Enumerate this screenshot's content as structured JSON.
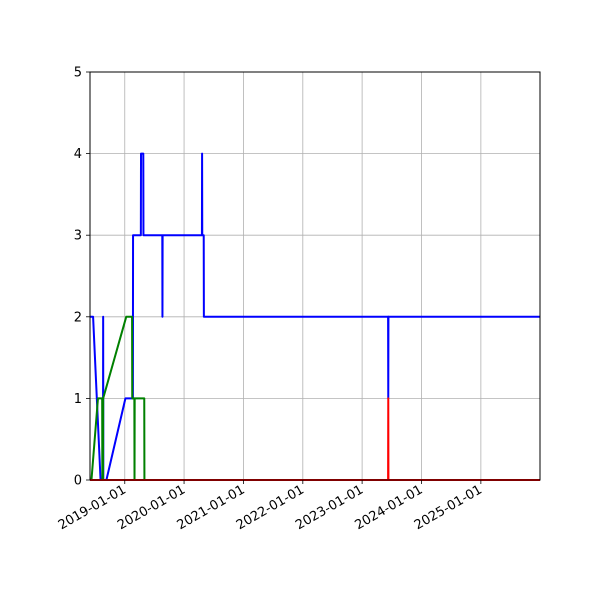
{
  "chart_data": {
    "type": "line",
    "title": "",
    "xlabel": "",
    "ylabel": "",
    "xlim": [
      "2018-06-01",
      "2025-12-31"
    ],
    "ylim": [
      0,
      5
    ],
    "grid": true,
    "x_ticks": [
      "2019-01-01",
      "2020-01-01",
      "2021-01-01",
      "2022-01-01",
      "2023-01-01",
      "2024-01-01",
      "2025-01-01"
    ],
    "y_ticks": [
      0,
      1,
      2,
      3,
      4,
      5
    ],
    "series": [
      {
        "color": "#0000ff",
        "points": [
          [
            "2018-06-01",
            2
          ],
          [
            "2018-06-20",
            2
          ],
          [
            "2018-08-05",
            0
          ],
          [
            "2018-08-20",
            0
          ],
          [
            "2018-08-21",
            2
          ],
          [
            "2018-08-22",
            0
          ],
          [
            "2018-09-10",
            0
          ],
          [
            "2019-01-05",
            1
          ],
          [
            "2019-02-20",
            1
          ],
          [
            "2019-02-21",
            3
          ],
          [
            "2019-04-10",
            3
          ],
          [
            "2019-04-11",
            4
          ],
          [
            "2019-04-25",
            4
          ],
          [
            "2019-04-26",
            3
          ],
          [
            "2019-08-20",
            3
          ],
          [
            "2019-08-21",
            2
          ],
          [
            "2019-08-22",
            3
          ],
          [
            "2020-04-20",
            3
          ],
          [
            "2020-04-21",
            4
          ],
          [
            "2020-04-22",
            3
          ],
          [
            "2020-05-01",
            3
          ],
          [
            "2020-05-02",
            2
          ],
          [
            "2023-06-10",
            2
          ],
          [
            "2023-06-11",
            1
          ],
          [
            "2023-06-12",
            2
          ],
          [
            "2025-12-31",
            2
          ]
        ]
      },
      {
        "color": "#008000",
        "points": [
          [
            "2018-06-01",
            0
          ],
          [
            "2018-06-10",
            0
          ],
          [
            "2018-07-20",
            1
          ],
          [
            "2018-08-15",
            1
          ],
          [
            "2018-08-16",
            0
          ],
          [
            "2018-08-20",
            0
          ],
          [
            "2018-08-21",
            1
          ],
          [
            "2019-01-10",
            2
          ],
          [
            "2019-02-15",
            2
          ],
          [
            "2019-02-16",
            1
          ],
          [
            "2019-03-01",
            1
          ],
          [
            "2019-03-02",
            0
          ],
          [
            "2019-03-03",
            1
          ],
          [
            "2019-05-01",
            1
          ],
          [
            "2019-05-02",
            0
          ],
          [
            "2025-12-31",
            0
          ]
        ]
      },
      {
        "color": "#ff0000",
        "points": [
          [
            "2018-06-01",
            0
          ],
          [
            "2023-06-10",
            0
          ],
          [
            "2023-06-11",
            1
          ],
          [
            "2023-06-12",
            0
          ],
          [
            "2025-12-31",
            0
          ]
        ]
      }
    ]
  }
}
